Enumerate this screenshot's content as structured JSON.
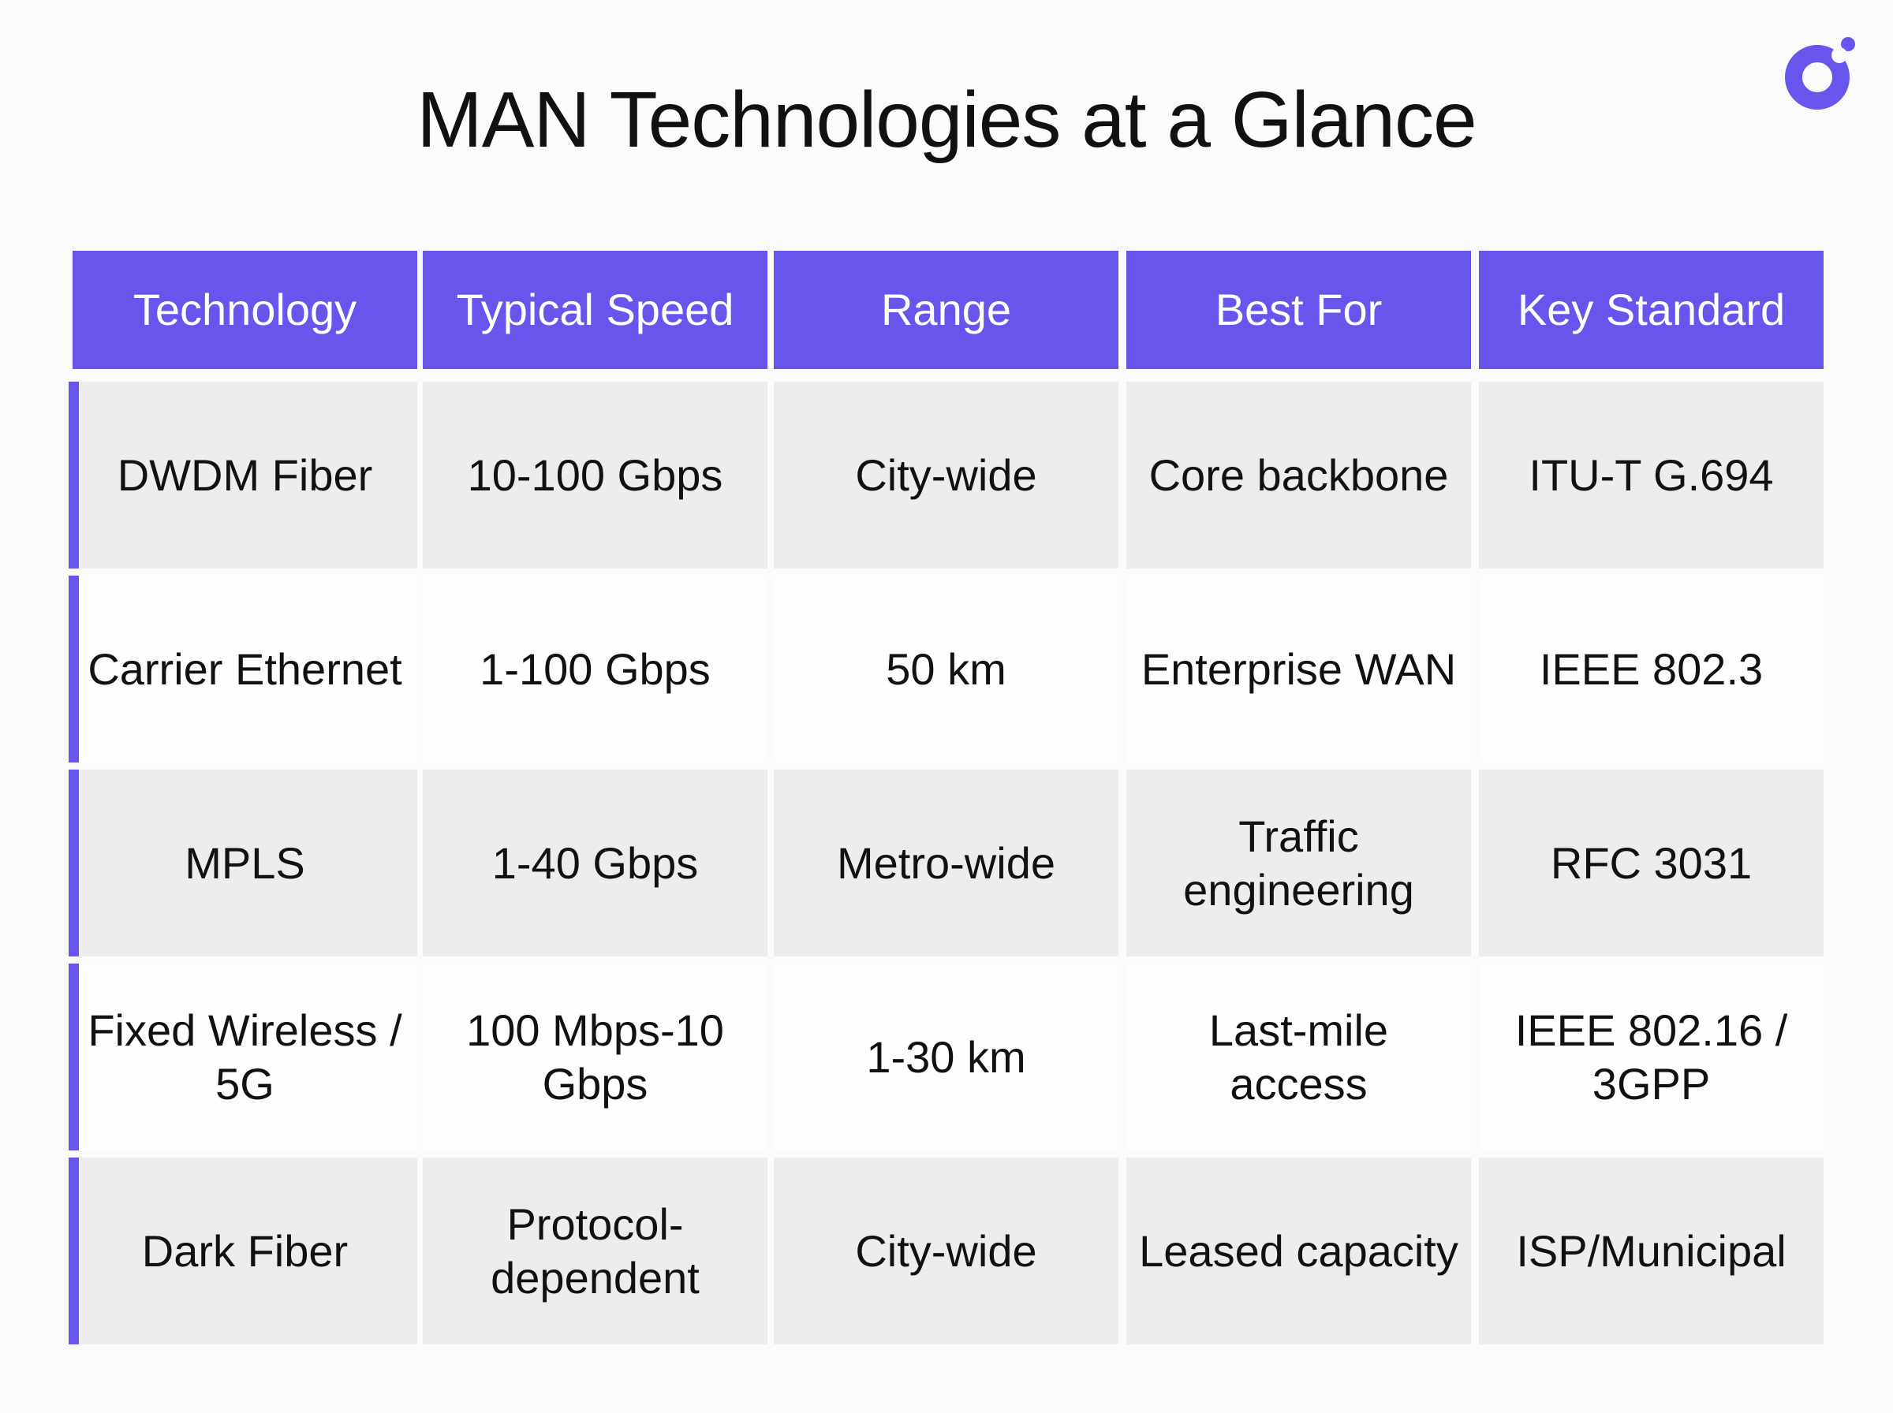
{
  "title": "MAN Technologies at a Glance",
  "logo": {
    "icon": "brand-ring-dot-logo",
    "color": "#6856ec"
  },
  "colors": {
    "accent": "#6856ec",
    "row_shaded": "#eeedeb",
    "row_plain": "#fdfdfd",
    "header_text": "#ffffff"
  },
  "table": {
    "headers": [
      "Technology",
      "Typical Speed",
      "Range",
      "Best For",
      "Key Standard"
    ],
    "rows": [
      [
        "DWDM Fiber",
        "10-100 Gbps",
        "City-wide",
        "Core backbone",
        "ITU-T G.694"
      ],
      [
        "Carrier Ethernet",
        "1-100 Gbps",
        "50 km",
        "Enterprise WAN",
        "IEEE 802.3"
      ],
      [
        "MPLS",
        "1-40 Gbps",
        "Metro-wide",
        "Traffic engineering",
        "RFC 3031"
      ],
      [
        "Fixed Wireless / 5G",
        "100 Mbps-10 Gbps",
        "1-30 km",
        "Last-mile access",
        "IEEE 802.16 / 3GPP"
      ],
      [
        "Dark Fiber",
        "Protocol-dependent",
        "City-wide",
        "Leased capacity",
        "ISP/Municipal"
      ]
    ]
  }
}
